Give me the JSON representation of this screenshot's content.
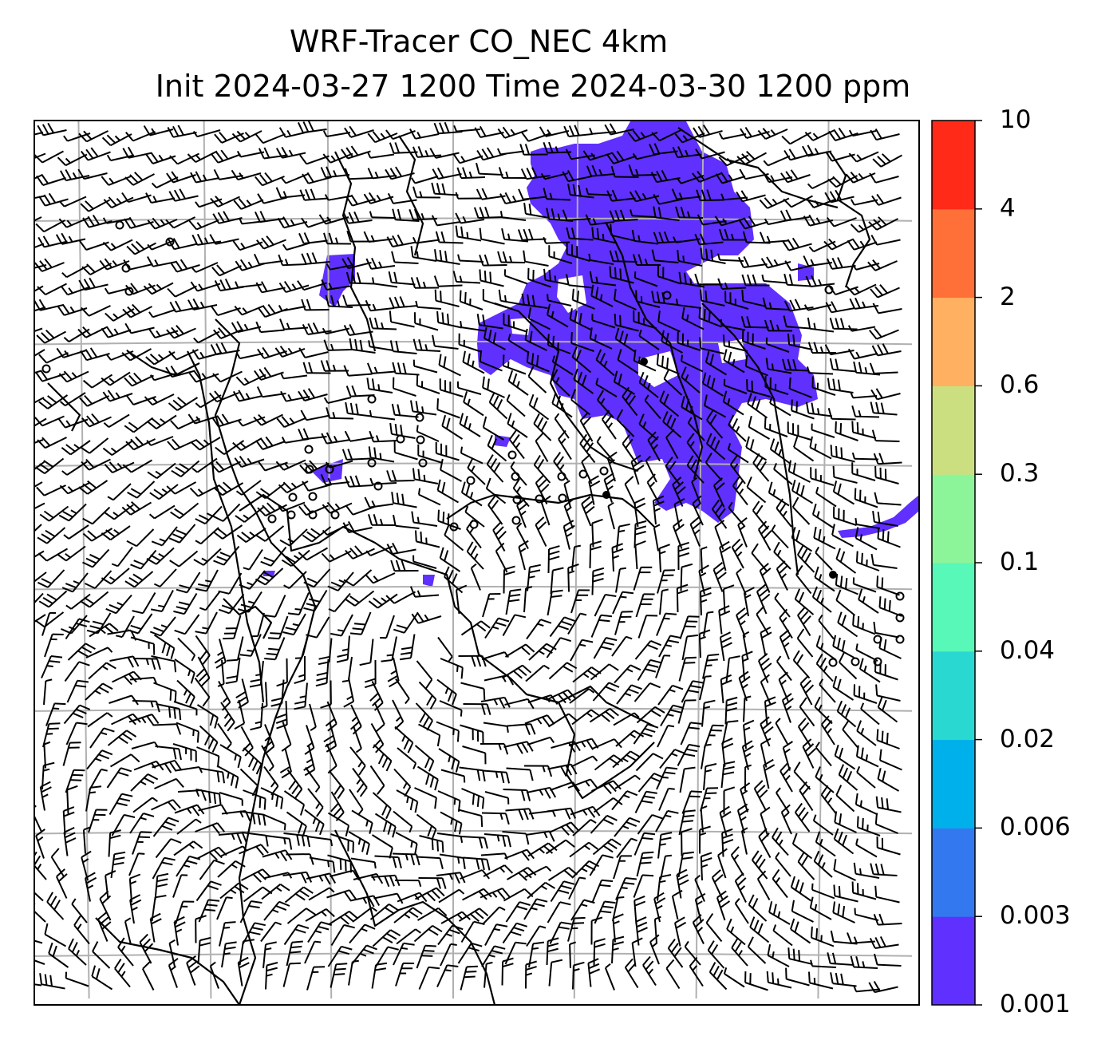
{
  "title": {
    "line1": "WRF-Tracer CO_NEC 4km",
    "line2": "Init 2024-03-27 1200 Time 2024-03-30 1200 ppm"
  },
  "colorbar": {
    "levels": [
      "0.001",
      "0.003",
      "0.006",
      "0.02",
      "0.04",
      "0.1",
      "0.3",
      "0.6",
      "2",
      "4",
      "10"
    ],
    "colors": [
      "#6030ff",
      "#3478f0",
      "#00b0ea",
      "#2ad8d2",
      "#58f8b8",
      "#8cf59a",
      "#ccdf80",
      "#ffb060",
      "#ff7038",
      "#ff2a18"
    ]
  },
  "map": {
    "plume_color": "#6030ff",
    "coastline_color": "#000000",
    "gridline_color": "#b0b0b0"
  }
}
